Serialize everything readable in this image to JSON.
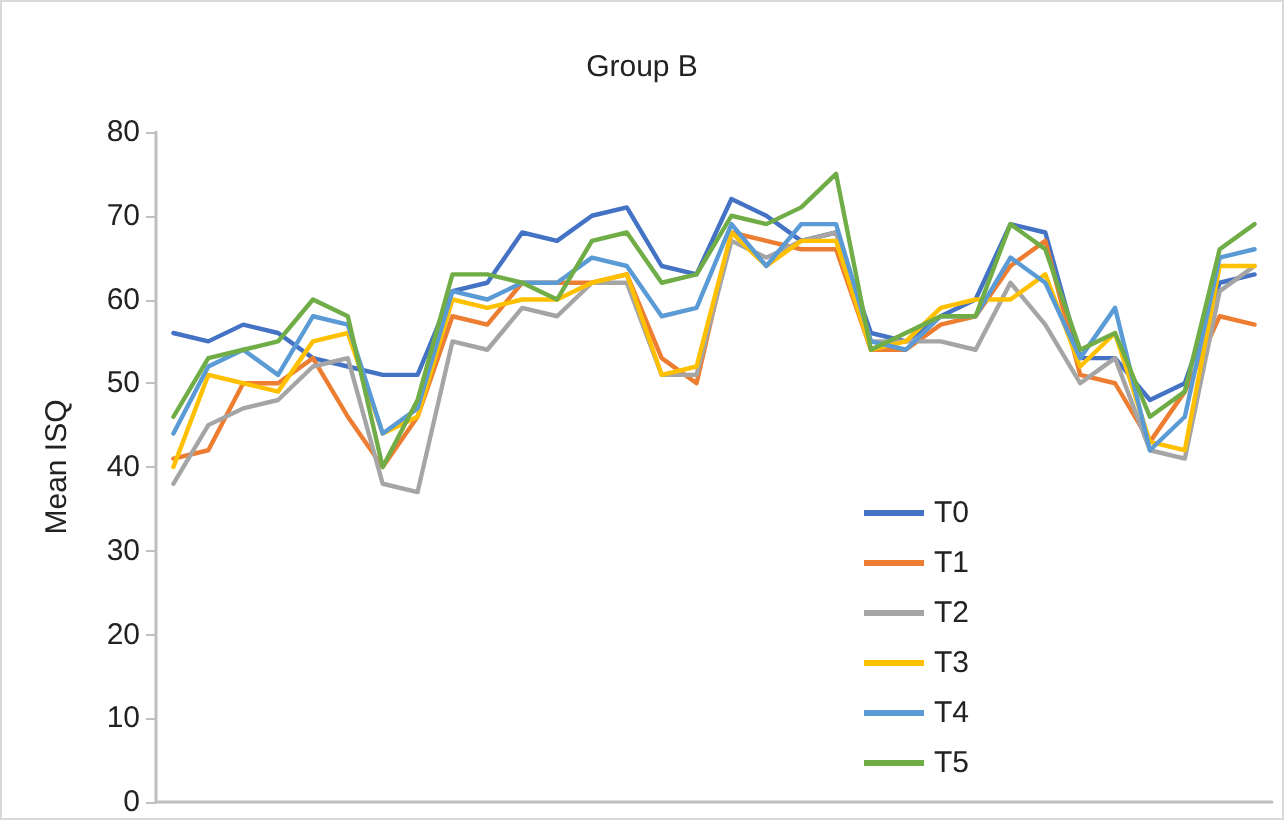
{
  "chart_data": {
    "type": "line",
    "title": "Group B",
    "ylabel": "Mean ISQ",
    "categories": [
      null,
      null,
      null,
      null,
      null,
      null,
      null,
      null,
      null,
      null,
      null,
      null,
      null,
      null,
      null,
      null,
      null,
      null,
      null,
      null,
      null,
      null,
      null,
      null,
      null,
      null,
      null,
      null,
      null,
      null,
      null,
      null
    ],
    "series": [
      {
        "name": "T0",
        "color": "#4472c4",
        "values": [
          56,
          55,
          57,
          56,
          53,
          52,
          51,
          51,
          61,
          62,
          68,
          67,
          70,
          71,
          64,
          63,
          72,
          70,
          67,
          68,
          56,
          55,
          58,
          60,
          69,
          68,
          53,
          53,
          48,
          50,
          62,
          63
        ]
      },
      {
        "name": "T1",
        "color": "#ed7d31",
        "values": [
          41,
          42,
          50,
          50,
          53,
          46,
          40,
          46,
          58,
          57,
          62,
          62,
          62,
          63,
          53,
          50,
          68,
          67,
          66,
          66,
          54,
          54,
          57,
          58,
          64,
          67,
          51,
          50,
          43,
          49,
          58,
          57
        ]
      },
      {
        "name": "T2",
        "color": "#a5a5a5",
        "values": [
          38,
          45,
          47,
          48,
          52,
          53,
          38,
          37,
          55,
          54,
          59,
          58,
          62,
          62,
          51,
          51,
          67,
          65,
          67,
          68,
          55,
          55,
          55,
          54,
          62,
          57,
          50,
          53,
          42,
          41,
          61,
          64
        ]
      },
      {
        "name": "T3",
        "color": "#ffc000",
        "values": [
          40,
          51,
          50,
          49,
          55,
          56,
          44,
          46,
          60,
          59,
          60,
          60,
          62,
          63,
          51,
          52,
          68,
          64,
          67,
          67,
          54,
          55,
          59,
          60,
          60,
          63,
          52,
          56,
          43,
          42,
          64,
          64
        ]
      },
      {
        "name": "T4",
        "color": "#5b9bd5",
        "values": [
          44,
          52,
          54,
          51,
          58,
          57,
          44,
          47,
          61,
          60,
          62,
          62,
          65,
          64,
          58,
          59,
          69,
          64,
          69,
          69,
          55,
          54,
          58,
          58,
          65,
          62,
          53,
          59,
          42,
          46,
          65,
          66
        ]
      },
      {
        "name": "T5",
        "color": "#70ad47",
        "values": [
          46,
          53,
          54,
          55,
          60,
          58,
          40,
          48,
          63,
          63,
          62,
          60,
          67,
          68,
          62,
          63,
          70,
          69,
          71,
          75,
          54,
          56,
          58,
          58,
          69,
          66,
          54,
          56,
          46,
          49,
          66,
          69
        ]
      }
    ],
    "ylim": [
      0,
      80
    ],
    "yticks": [
      0,
      10,
      20,
      30,
      40,
      50,
      60,
      70,
      80
    ],
    "grid": false,
    "legend": "bottom right",
    "line_style": "solid",
    "marker": "none"
  }
}
